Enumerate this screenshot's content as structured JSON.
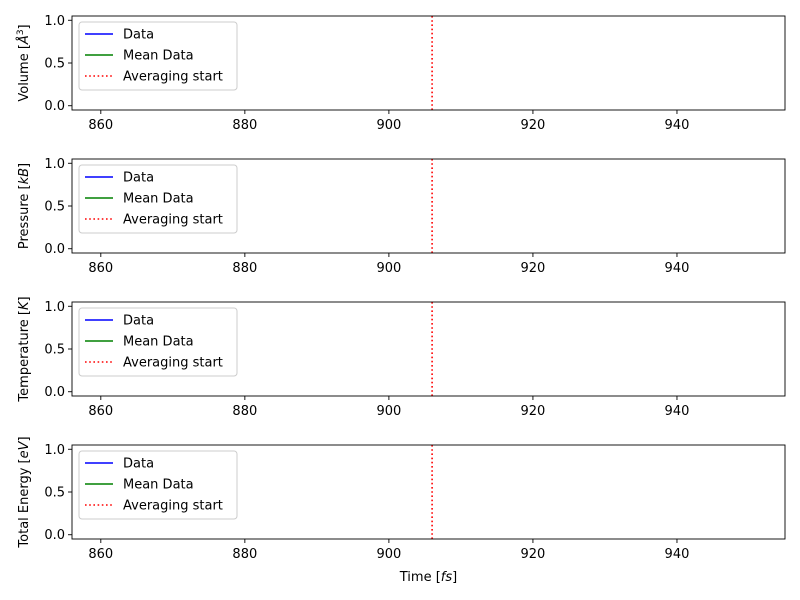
{
  "chart_data": [
    {
      "type": "line",
      "ylabel_prefix": "Volume ",
      "ylabel_unit": "Å",
      "ylabel_sup": "3",
      "xlim": [
        856,
        955
      ],
      "ylim": [
        -0.05,
        1.05
      ],
      "xticks": [
        860,
        880,
        900,
        920,
        940
      ],
      "yticks": [
        0.0,
        0.5,
        1.0
      ],
      "xtick_labels": [
        "860",
        "880",
        "900",
        "920",
        "940"
      ],
      "ytick_labels": [
        "0.0",
        "0.5",
        "1.0"
      ],
      "series": [
        {
          "name": "Data",
          "color": "#0000ff",
          "x": [],
          "y": []
        },
        {
          "name": "Mean Data",
          "color": "#008000",
          "x": [],
          "y": []
        }
      ],
      "vline": {
        "name": "Averaging start",
        "x": 906,
        "color": "#ff0000",
        "style": "dotted"
      },
      "legend": "upper-left"
    },
    {
      "type": "line",
      "ylabel_prefix": "Pressure ",
      "ylabel_unit": "kB",
      "ylabel_sup": "",
      "xlim": [
        856,
        955
      ],
      "ylim": [
        -0.05,
        1.05
      ],
      "xticks": [
        860,
        880,
        900,
        920,
        940
      ],
      "yticks": [
        0.0,
        0.5,
        1.0
      ],
      "xtick_labels": [
        "860",
        "880",
        "900",
        "920",
        "940"
      ],
      "ytick_labels": [
        "0.0",
        "0.5",
        "1.0"
      ],
      "series": [
        {
          "name": "Data",
          "color": "#0000ff",
          "x": [],
          "y": []
        },
        {
          "name": "Mean Data",
          "color": "#008000",
          "x": [],
          "y": []
        }
      ],
      "vline": {
        "name": "Averaging start",
        "x": 906,
        "color": "#ff0000",
        "style": "dotted"
      },
      "legend": "upper-left"
    },
    {
      "type": "line",
      "ylabel_prefix": "Temperature ",
      "ylabel_unit": "K",
      "ylabel_sup": "",
      "xlim": [
        856,
        955
      ],
      "ylim": [
        -0.05,
        1.05
      ],
      "xticks": [
        860,
        880,
        900,
        920,
        940
      ],
      "yticks": [
        0.0,
        0.5,
        1.0
      ],
      "xtick_labels": [
        "860",
        "880",
        "900",
        "920",
        "940"
      ],
      "ytick_labels": [
        "0.0",
        "0.5",
        "1.0"
      ],
      "series": [
        {
          "name": "Data",
          "color": "#0000ff",
          "x": [],
          "y": []
        },
        {
          "name": "Mean Data",
          "color": "#008000",
          "x": [],
          "y": []
        }
      ],
      "vline": {
        "name": "Averaging start",
        "x": 906,
        "color": "#ff0000",
        "style": "dotted"
      },
      "legend": "upper-left"
    },
    {
      "type": "line",
      "ylabel_prefix": "Total Energy ",
      "ylabel_unit": "eV",
      "ylabel_sup": "",
      "xlabel_prefix": "Time ",
      "xlabel_unit": "fs",
      "xlim": [
        856,
        955
      ],
      "ylim": [
        -0.05,
        1.05
      ],
      "xticks": [
        860,
        880,
        900,
        920,
        940
      ],
      "yticks": [
        0.0,
        0.5,
        1.0
      ],
      "xtick_labels": [
        "860",
        "880",
        "900",
        "920",
        "940"
      ],
      "ytick_labels": [
        "0.0",
        "0.5",
        "1.0"
      ],
      "series": [
        {
          "name": "Data",
          "color": "#0000ff",
          "x": [],
          "y": []
        },
        {
          "name": "Mean Data",
          "color": "#008000",
          "x": [],
          "y": []
        }
      ],
      "vline": {
        "name": "Averaging start",
        "x": 906,
        "color": "#ff0000",
        "style": "dotted"
      },
      "legend": "upper-left"
    }
  ]
}
